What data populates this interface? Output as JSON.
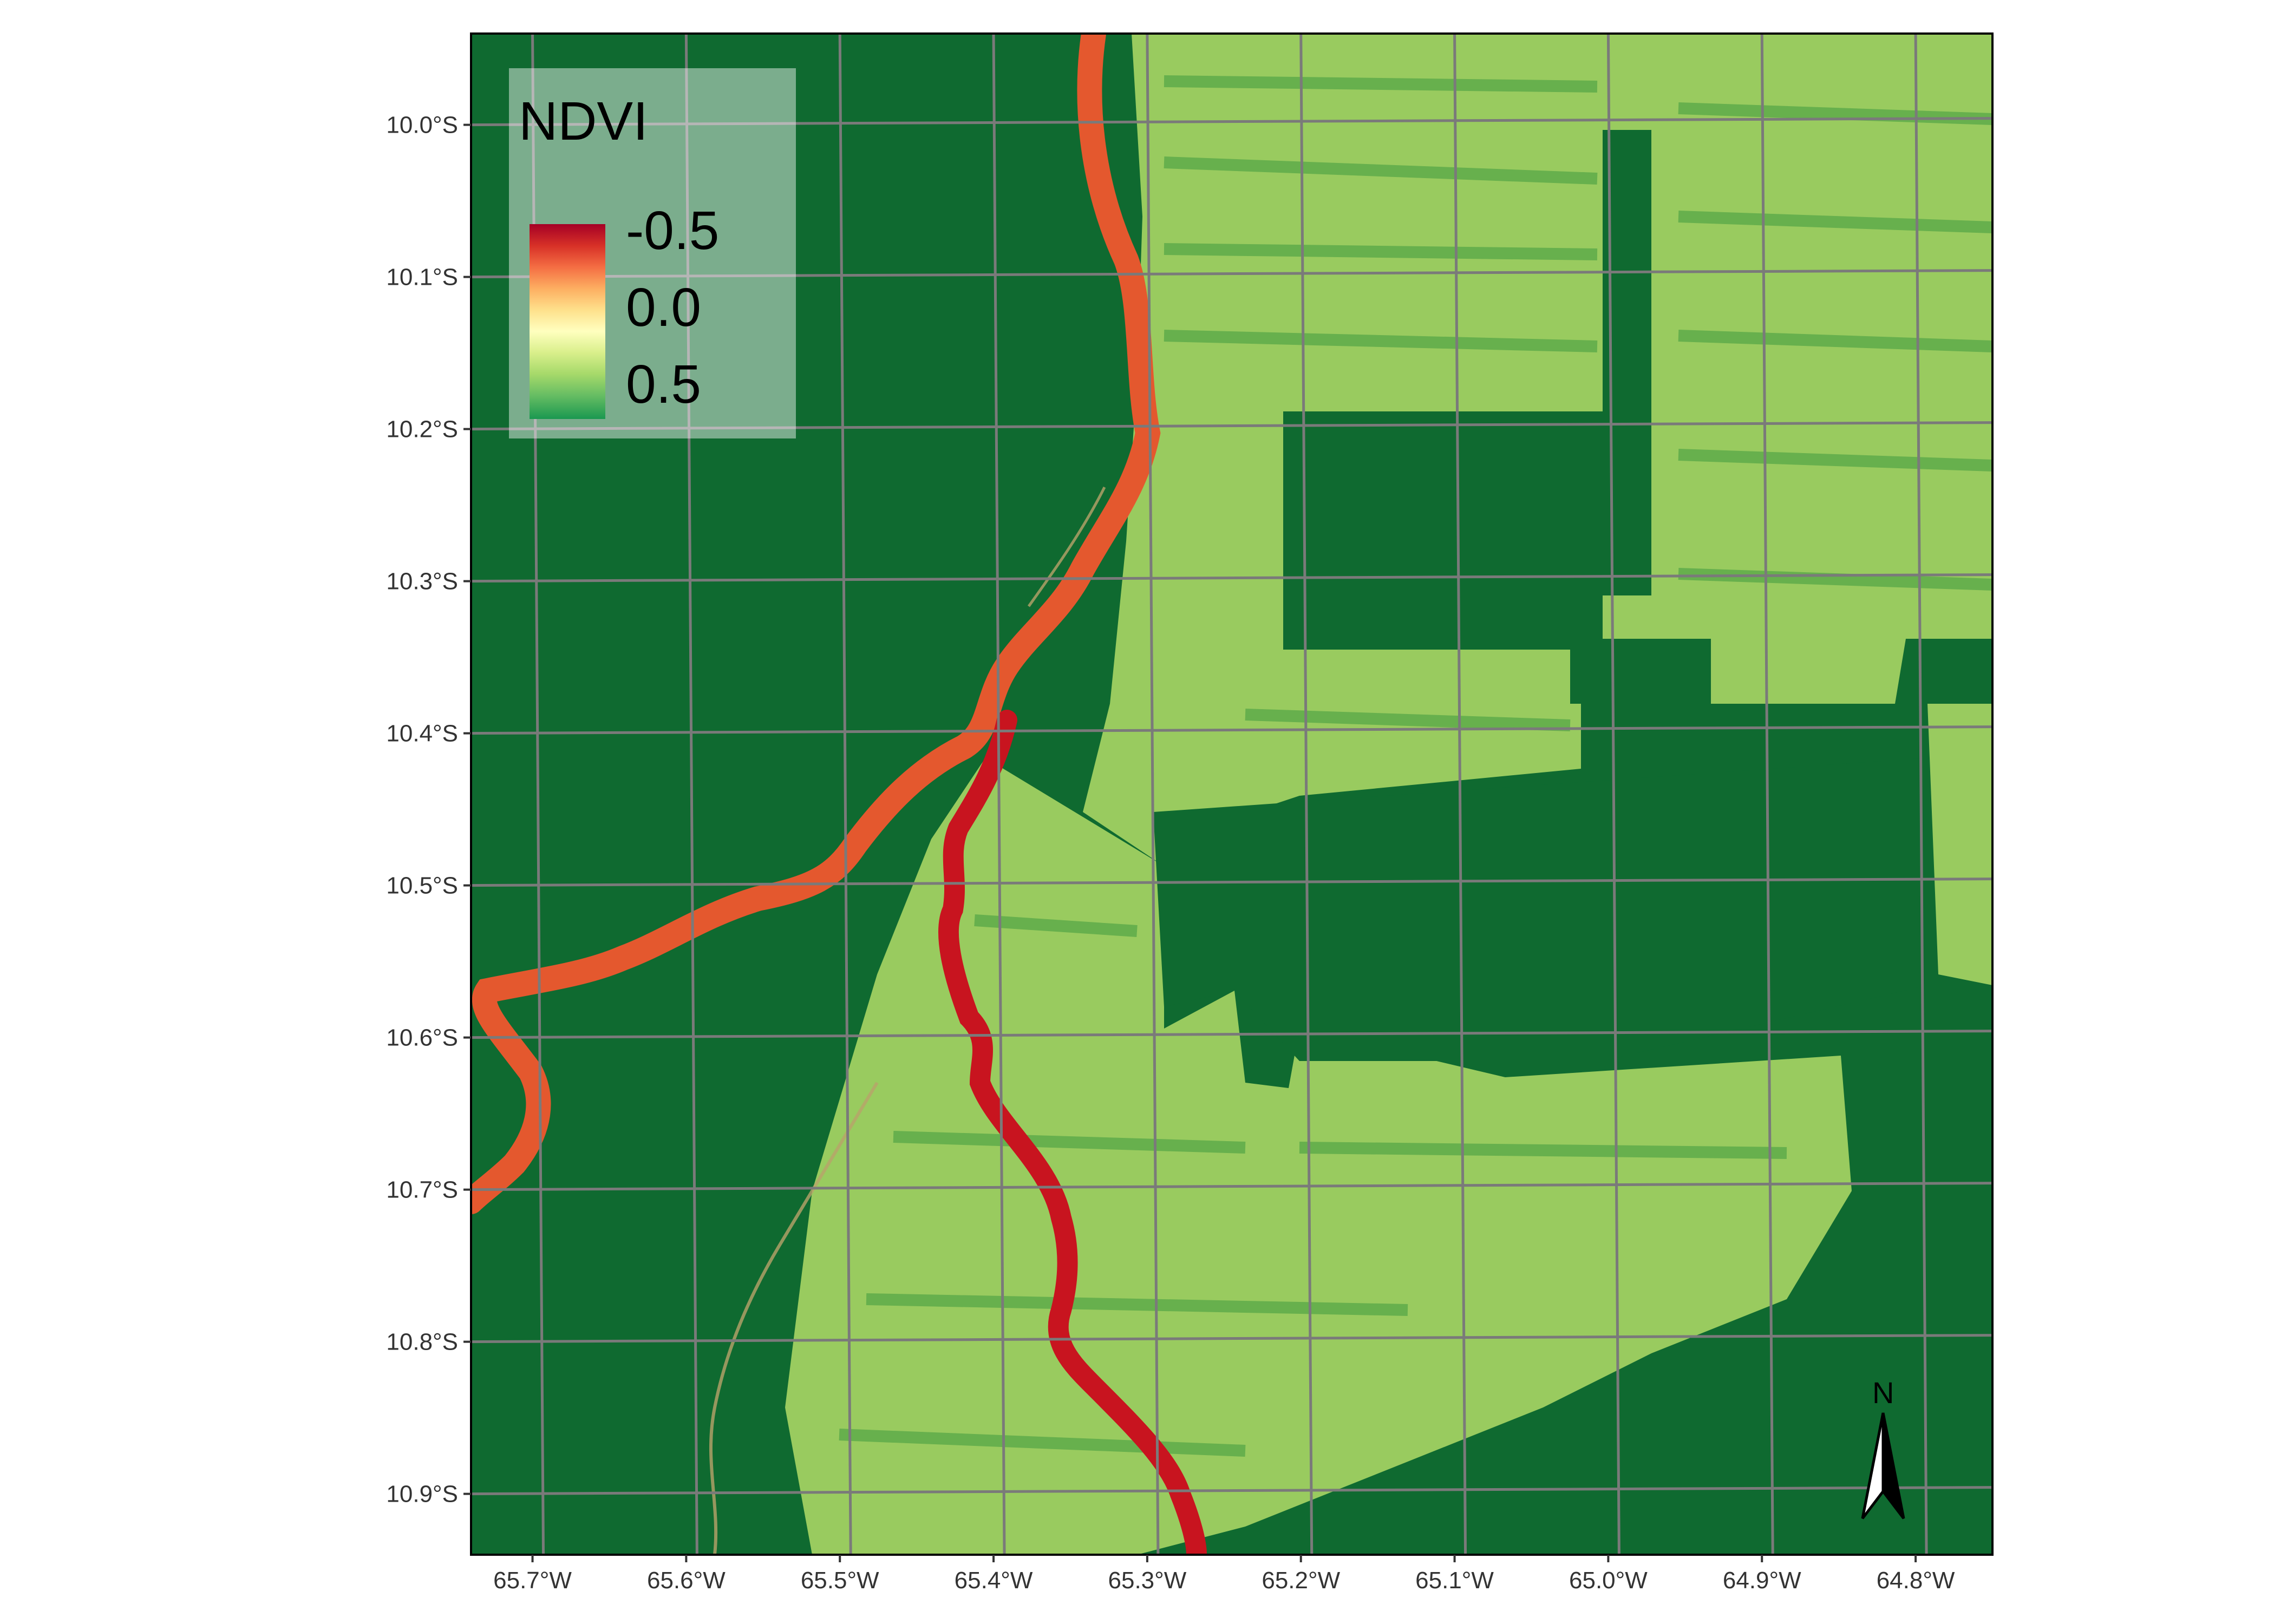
{
  "legend": {
    "title": "NDVI",
    "labels": [
      "-0.5",
      "0.0",
      "0.5"
    ],
    "colors": [
      "#a50026",
      "#d73027",
      "#f46d43",
      "#fdae61",
      "#fee08b",
      "#ffffbf",
      "#d9ef8b",
      "#a6d96a",
      "#66bd63",
      "#1a9850"
    ]
  },
  "axes": {
    "x_labels": [
      "65.7°W",
      "65.6°W",
      "65.5°W",
      "65.4°W",
      "65.3°W",
      "65.2°W",
      "65.1°W",
      "65.0°W",
      "64.9°W",
      "64.8°W"
    ],
    "y_labels": [
      "10.0°S",
      "10.1°S",
      "10.2°S",
      "10.3°S",
      "10.4°S",
      "10.5°S",
      "10.6°S",
      "10.7°S",
      "10.8°S",
      "10.9°S"
    ],
    "x_range": [
      -65.74,
      -64.75
    ],
    "y_range": [
      -10.94,
      -9.94
    ]
  },
  "north_arrow": {
    "label": "N"
  },
  "colors": {
    "forest": "#0f6a30",
    "cleared": "#b9df74",
    "river": "#d33a2c",
    "grid": "#7a7a7a"
  }
}
